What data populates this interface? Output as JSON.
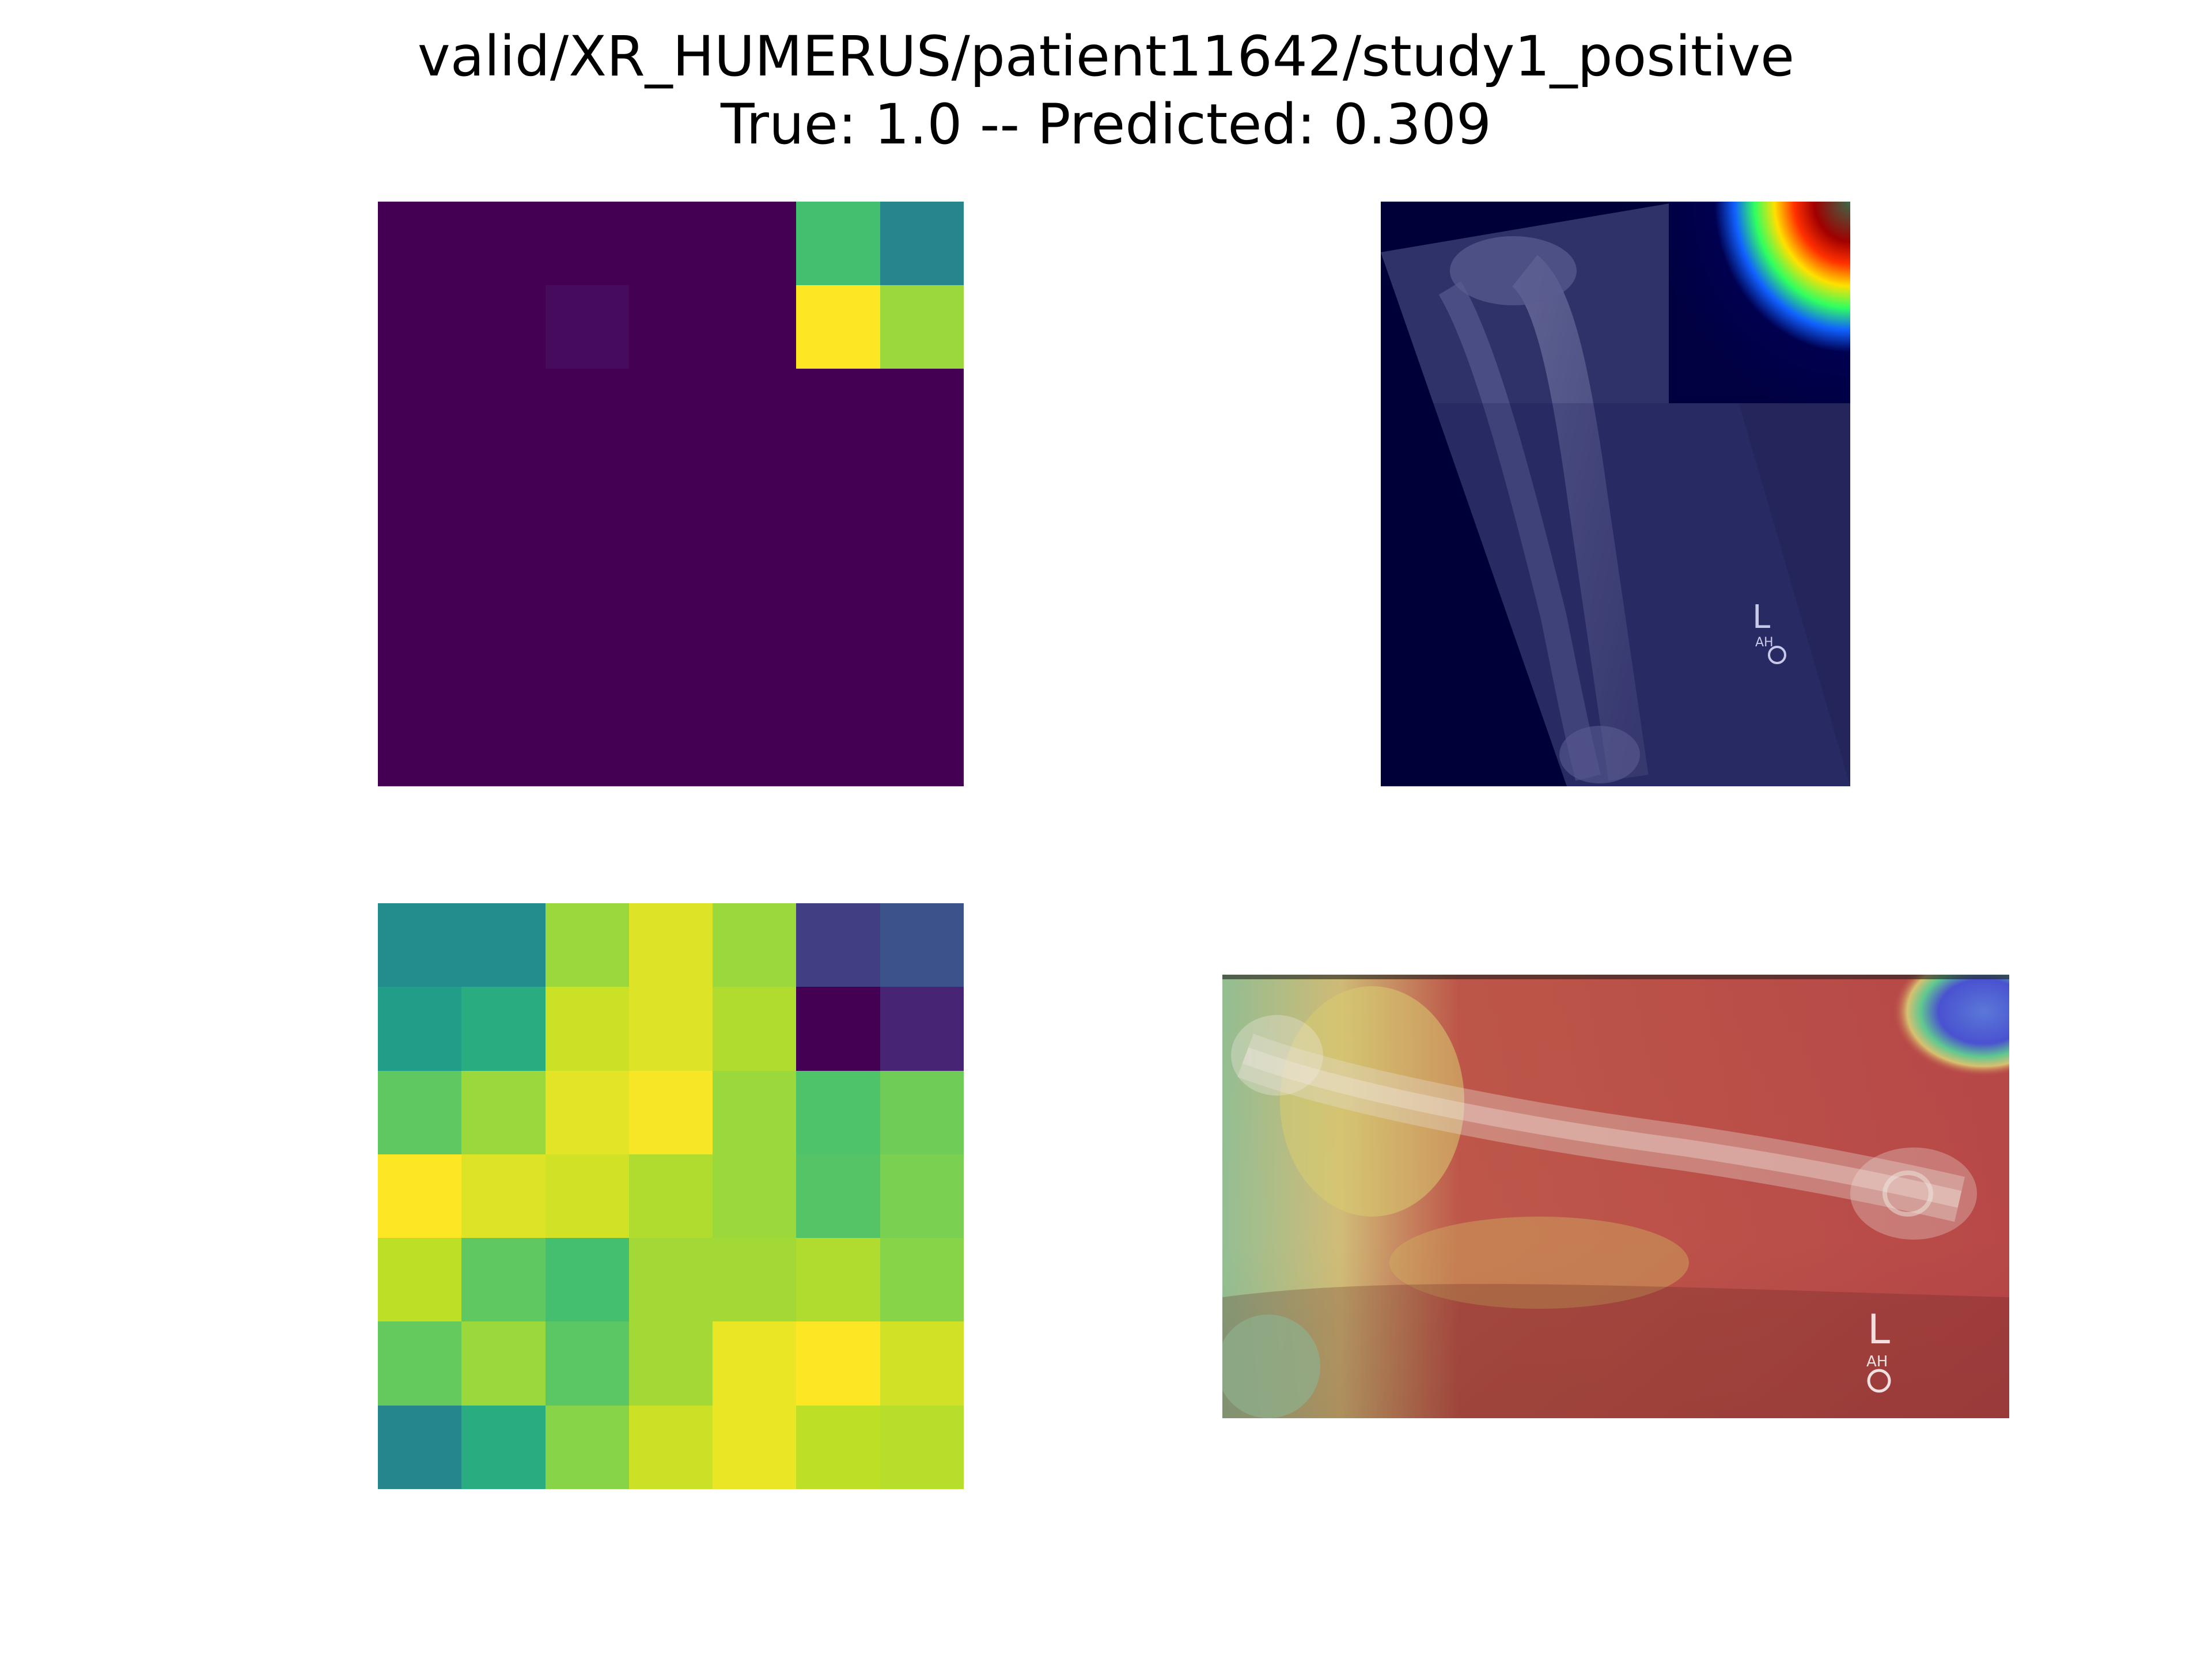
{
  "figure": {
    "title_line1": "valid/XR_HUMERUS/patient11642/study1_positive",
    "title_line2": "True: 1.0 -- Predicted: 0.309"
  },
  "chart_data": [
    {
      "type": "heatmap",
      "colormap": "viridis",
      "rows": 7,
      "cols": 7,
      "values": [
        [
          0.0,
          0.0,
          0.0,
          0.0,
          0.0,
          0.7,
          0.45
        ],
        [
          0.0,
          0.0,
          0.03,
          0.0,
          0.0,
          1.0,
          0.85
        ],
        [
          0.0,
          0.0,
          0.0,
          0.0,
          0.0,
          0.0,
          0.0
        ],
        [
          0.0,
          0.0,
          0.0,
          0.0,
          0.0,
          0.0,
          0.0
        ],
        [
          0.0,
          0.0,
          0.0,
          0.0,
          0.0,
          0.0,
          0.0
        ],
        [
          0.0,
          0.0,
          0.0,
          0.0,
          0.0,
          0.0,
          0.0
        ],
        [
          0.0,
          0.0,
          0.0,
          0.0,
          0.0,
          0.0,
          0.0
        ]
      ]
    },
    {
      "type": "heatmap",
      "colormap": "viridis",
      "rows": 7,
      "cols": 7,
      "values": [
        [
          0.48,
          0.48,
          0.85,
          0.95,
          0.85,
          0.18,
          0.25
        ],
        [
          0.55,
          0.62,
          0.92,
          0.95,
          0.88,
          0.0,
          0.1
        ],
        [
          0.75,
          0.85,
          0.96,
          0.99,
          0.85,
          0.72,
          0.78
        ],
        [
          1.0,
          0.95,
          0.93,
          0.88,
          0.85,
          0.73,
          0.8
        ],
        [
          0.9,
          0.75,
          0.7,
          0.86,
          0.86,
          0.88,
          0.82
        ],
        [
          0.76,
          0.85,
          0.74,
          0.86,
          0.97,
          1.0,
          0.93
        ],
        [
          0.46,
          0.62,
          0.82,
          0.92,
          0.97,
          0.9,
          0.89
        ]
      ]
    }
  ],
  "images": {
    "top_right": "xray-with-heatmap-overlay",
    "bottom_right": "xray-with-heatmap-overlay",
    "marker_text": "L",
    "marker_subtext": "AH"
  }
}
